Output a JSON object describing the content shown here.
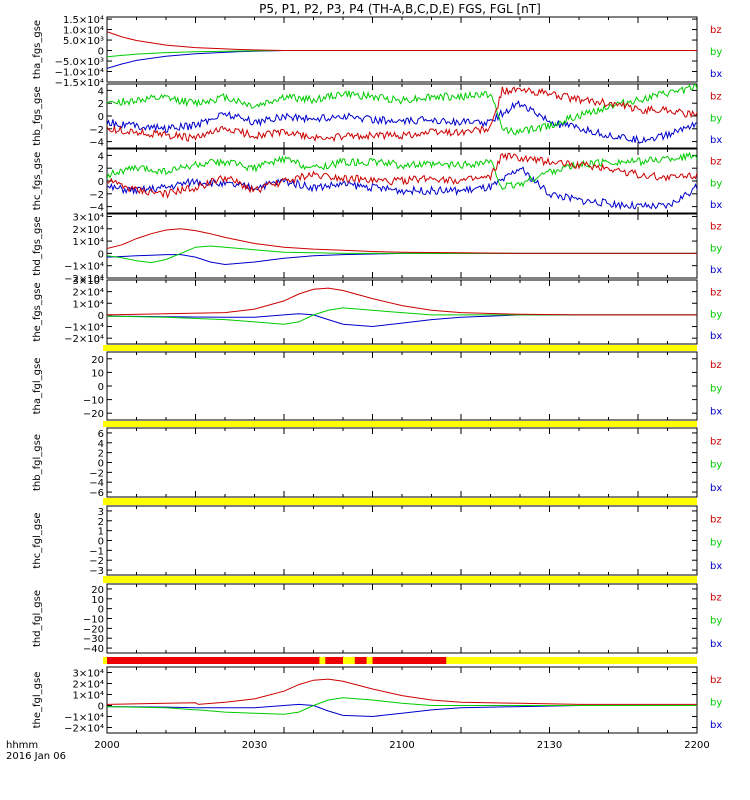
{
  "title": "P5, P1, P2, P3, P4 (TH-A,B,C,D,E) FGS, FGL [nT]",
  "time_axis": {
    "ticks": [
      "2000",
      "2030",
      "2100",
      "2130",
      "2200"
    ],
    "unit_label": "hhmm",
    "date_label": "2016 Jan 06"
  },
  "component_labels": [
    "bz",
    "by",
    "bx"
  ],
  "colors": {
    "bz": "#cc0000",
    "by": "#00cc00",
    "bx": "#0000cc",
    "flag_yellow": "#ffff00",
    "flag_red": "#ee0000"
  },
  "chart_data": [
    {
      "type": "line",
      "ylabel": "tha_fgs_gse",
      "ylim": [
        -15000,
        16000
      ],
      "ytick_labels": [
        "1.5×10⁴",
        "1.0×10⁴",
        "5.0×10³",
        "0",
        "−5.0×10³",
        "−1.0×10⁴",
        "−1.5×10⁴"
      ],
      "ytick_values": [
        15000,
        10000,
        5000,
        0,
        -5000,
        -10000,
        -15000
      ],
      "series": [
        {
          "name": "bz",
          "x": [
            0,
            5,
            10,
            20,
            30,
            45,
            60,
            200
          ],
          "y": [
            9000,
            6500,
            4800,
            2600,
            1400,
            500,
            0,
            0
          ]
        },
        {
          "name": "by",
          "x": [
            0,
            5,
            10,
            20,
            30,
            45,
            60,
            200
          ],
          "y": [
            -3000,
            -2300,
            -1700,
            -1000,
            -600,
            -200,
            0,
            0
          ]
        },
        {
          "name": "bx",
          "x": [
            0,
            5,
            10,
            20,
            30,
            45,
            60,
            200
          ],
          "y": [
            -8500,
            -6400,
            -4700,
            -2700,
            -1500,
            -500,
            0,
            0
          ]
        }
      ]
    },
    {
      "type": "line",
      "ylabel": "thb_fgs_gse",
      "ylim": [
        -5,
        5
      ],
      "ytick_labels": [
        "4",
        "2",
        "0",
        "−2",
        "−4"
      ],
      "ytick_values": [
        4,
        2,
        0,
        -2,
        -4
      ],
      "series": [
        {
          "name": "bz",
          "x": [
            0,
            10,
            20,
            30,
            40,
            50,
            60,
            70,
            80,
            90,
            100,
            110,
            120,
            130,
            134,
            140,
            150,
            160,
            170,
            180,
            190,
            200
          ],
          "y": [
            -2,
            -2.5,
            -3,
            -3.5,
            -2,
            -3,
            -2.5,
            -3.5,
            -3.3,
            -3,
            -3,
            -2.5,
            -2.5,
            -2,
            4,
            4,
            3.5,
            2.5,
            2,
            1,
            1,
            0
          ]
        },
        {
          "name": "by",
          "x": [
            0,
            10,
            20,
            30,
            40,
            50,
            60,
            70,
            80,
            90,
            100,
            110,
            120,
            130,
            134,
            140,
            150,
            160,
            170,
            180,
            190,
            200
          ],
          "y": [
            2,
            2.5,
            2.8,
            2,
            3,
            1.5,
            3,
            2.5,
            3.5,
            3,
            2.5,
            3,
            3,
            3.5,
            -2,
            -2.5,
            -1.5,
            0,
            1.5,
            2.5,
            3.5,
            4.5
          ]
        },
        {
          "name": "bx",
          "x": [
            0,
            10,
            20,
            30,
            40,
            50,
            60,
            70,
            80,
            90,
            100,
            110,
            120,
            130,
            134,
            140,
            150,
            160,
            170,
            180,
            190,
            200
          ],
          "y": [
            -1,
            -1.5,
            -2,
            -1.5,
            0.5,
            -1,
            0,
            -0.5,
            0,
            -0.5,
            -1,
            -0.5,
            -1,
            -1,
            0.5,
            2,
            -1,
            -2,
            -3,
            -3.8,
            -3,
            -1
          ]
        }
      ]
    },
    {
      "type": "line",
      "ylabel": "thc_fgs_gse",
      "ylim": [
        -5,
        5
      ],
      "ytick_labels": [
        "4",
        "2",
        "0",
        "−2",
        "−4"
      ],
      "ytick_values": [
        4,
        2,
        0,
        -2,
        -4
      ],
      "series": [
        {
          "name": "bz",
          "x": [
            0,
            10,
            20,
            30,
            40,
            50,
            60,
            70,
            80,
            90,
            100,
            110,
            120,
            130,
            134,
            140,
            150,
            160,
            170,
            180,
            190,
            200
          ],
          "y": [
            0,
            -1.5,
            -2,
            -1,
            0.5,
            -1.5,
            0,
            1,
            0.5,
            0,
            0,
            0.5,
            0,
            0.5,
            4,
            3.5,
            3,
            2.5,
            2,
            1,
            0.5,
            1
          ]
        },
        {
          "name": "by",
          "x": [
            0,
            10,
            20,
            30,
            40,
            50,
            60,
            70,
            80,
            90,
            100,
            110,
            120,
            130,
            134,
            140,
            150,
            160,
            170,
            180,
            190,
            200
          ],
          "y": [
            1,
            2,
            1.5,
            2.5,
            3,
            2,
            3.5,
            2,
            3,
            3,
            2.5,
            2.5,
            2.5,
            3,
            -1,
            -0.5,
            1.5,
            2.5,
            3,
            3,
            3.5,
            4
          ]
        },
        {
          "name": "bx",
          "x": [
            0,
            10,
            20,
            30,
            40,
            50,
            60,
            70,
            80,
            90,
            100,
            110,
            120,
            130,
            134,
            140,
            150,
            160,
            170,
            180,
            190,
            200
          ],
          "y": [
            -1,
            -1.5,
            -1,
            0,
            -0.5,
            -1,
            0,
            -1,
            -0.5,
            -1,
            -1.5,
            -1.5,
            -1.5,
            -1,
            0,
            2,
            -2,
            -3,
            -3.5,
            -4,
            -4,
            -1
          ]
        }
      ]
    },
    {
      "type": "line",
      "ylabel": "thd_fgs_gse",
      "ylim": [
        -20000,
        32000
      ],
      "ytick_labels": [
        "3×10⁴",
        "2×10⁴",
        "1×10⁴",
        "0",
        "−1×10⁴",
        "−2×10⁴"
      ],
      "ytick_values": [
        30000,
        20000,
        10000,
        0,
        -10000,
        -20000
      ],
      "series": [
        {
          "name": "bz",
          "x": [
            0,
            5,
            10,
            15,
            20,
            25,
            30,
            35,
            40,
            50,
            60,
            70,
            80,
            90,
            100,
            120,
            140,
            200
          ],
          "y": [
            4000,
            7000,
            12000,
            16000,
            19000,
            20000,
            18500,
            16000,
            13000,
            8000,
            5000,
            3500,
            2500,
            1500,
            1000,
            500,
            0,
            0
          ]
        },
        {
          "name": "by",
          "x": [
            0,
            5,
            10,
            15,
            20,
            25,
            30,
            35,
            40,
            50,
            60,
            70,
            80,
            90,
            100,
            120,
            140,
            200
          ],
          "y": [
            -2000,
            -3500,
            -6000,
            -7500,
            -5000,
            0,
            5000,
            6000,
            5000,
            3000,
            1000,
            500,
            0,
            0,
            0,
            0,
            0,
            0
          ]
        },
        {
          "name": "bx",
          "x": [
            0,
            5,
            10,
            15,
            20,
            25,
            30,
            35,
            40,
            50,
            60,
            70,
            80,
            90,
            100,
            120,
            140,
            200
          ],
          "y": [
            -3000,
            -2500,
            -2000,
            -1500,
            -1000,
            -1000,
            -3000,
            -7000,
            -9000,
            -7000,
            -4000,
            -2000,
            -1000,
            -500,
            0,
            0,
            0,
            0
          ]
        }
      ]
    },
    {
      "type": "line",
      "ylabel": "the_fgs_gse",
      "ylim": [
        -25000,
        30000
      ],
      "ytick_labels": [
        "3×10⁴",
        "2×10⁴",
        "1×10⁴",
        "0",
        "−1×10⁴",
        "−2×10⁴"
      ],
      "ytick_values": [
        30000,
        20000,
        10000,
        0,
        -10000,
        -20000
      ],
      "series": [
        {
          "name": "bz",
          "x": [
            0,
            20,
            40,
            50,
            60,
            65,
            70,
            75,
            80,
            90,
            100,
            110,
            120,
            140,
            160,
            200
          ],
          "y": [
            0,
            1000,
            2000,
            5000,
            12000,
            18000,
            22000,
            23000,
            21000,
            14000,
            8000,
            4000,
            2000,
            500,
            0,
            0
          ]
        },
        {
          "name": "by",
          "x": [
            0,
            20,
            40,
            50,
            60,
            65,
            70,
            75,
            80,
            90,
            100,
            110,
            120,
            140,
            160,
            200
          ],
          "y": [
            -1000,
            -2000,
            -4000,
            -6000,
            -8000,
            -6000,
            0,
            4000,
            6000,
            4000,
            2000,
            0,
            0,
            0,
            0,
            0
          ]
        },
        {
          "name": "bx",
          "x": [
            0,
            20,
            40,
            50,
            60,
            65,
            70,
            75,
            80,
            90,
            100,
            110,
            120,
            140,
            160,
            200
          ],
          "y": [
            -1000,
            -1500,
            -2000,
            -2000,
            0,
            1000,
            0,
            -4000,
            -8000,
            -10000,
            -7000,
            -4000,
            -2000,
            0,
            0,
            0
          ]
        }
      ]
    },
    {
      "type": "line",
      "ylabel": "tha_fgl_gse",
      "ylim": [
        -25,
        25
      ],
      "ytick_labels": [
        "20",
        "10",
        "0",
        "−10",
        "−20"
      ],
      "ytick_values": [
        20,
        10,
        0,
        -10,
        -20
      ],
      "series": []
    },
    {
      "type": "line",
      "ylabel": "thb_fgl_gse",
      "ylim": [
        -7,
        7
      ],
      "ytick_labels": [
        "6",
        "4",
        "2",
        "0",
        "−2",
        "−4",
        "−6"
      ],
      "ytick_values": [
        6,
        4,
        2,
        0,
        -2,
        -4,
        -6
      ],
      "series": []
    },
    {
      "type": "line",
      "ylabel": "thc_fgl_gse",
      "ylim": [
        -3.5,
        3.5
      ],
      "ytick_labels": [
        "3",
        "2",
        "1",
        "0",
        "−1",
        "−2",
        "−3"
      ],
      "ytick_values": [
        3,
        2,
        1,
        0,
        -1,
        -2,
        -3
      ],
      "series": []
    },
    {
      "type": "line",
      "ylabel": "thd_fgl_gse",
      "ylim": [
        -45,
        25
      ],
      "ytick_labels": [
        "20",
        "10",
        "0",
        "−10",
        "−20",
        "−30",
        "−40"
      ],
      "ytick_values": [
        20,
        10,
        0,
        -10,
        -20,
        -30,
        -40
      ],
      "series": []
    },
    {
      "type": "line",
      "ylabel": "the_fgl_gse",
      "ylim": [
        -25000,
        35000
      ],
      "ytick_labels": [
        "3×10⁴",
        "2×10⁴",
        "1×10⁴",
        "0",
        "−1×10⁴",
        "−2×10⁴"
      ],
      "ytick_values": [
        30000,
        20000,
        10000,
        0,
        -10000,
        -20000
      ],
      "series": [
        {
          "name": "bz",
          "x": [
            0,
            20,
            30,
            31,
            40,
            50,
            60,
            65,
            70,
            75,
            80,
            90,
            100,
            110,
            120,
            140,
            160,
            200
          ],
          "y": [
            1000,
            2000,
            2500,
            1000,
            3000,
            6000,
            13000,
            19000,
            23000,
            24000,
            22000,
            15000,
            9000,
            5000,
            3000,
            2000,
            1000,
            1000
          ]
        },
        {
          "name": "by",
          "x": [
            0,
            20,
            30,
            31,
            40,
            50,
            60,
            65,
            70,
            75,
            80,
            90,
            100,
            110,
            120,
            140,
            160,
            200
          ],
          "y": [
            -1000,
            -2000,
            -4000,
            -4000,
            -6000,
            -7000,
            -8000,
            -6000,
            0,
            5000,
            7000,
            5000,
            2000,
            0,
            0,
            0,
            0,
            0
          ]
        },
        {
          "name": "bx",
          "x": [
            0,
            20,
            30,
            31,
            40,
            50,
            60,
            65,
            70,
            75,
            80,
            90,
            100,
            110,
            120,
            140,
            160,
            200
          ],
          "y": [
            -1000,
            -1500,
            -2000,
            -2000,
            -2000,
            -2000,
            0,
            1000,
            0,
            -5000,
            -9000,
            -10000,
            -7000,
            -4000,
            -2000,
            -1000,
            0,
            0
          ]
        }
      ]
    }
  ]
}
